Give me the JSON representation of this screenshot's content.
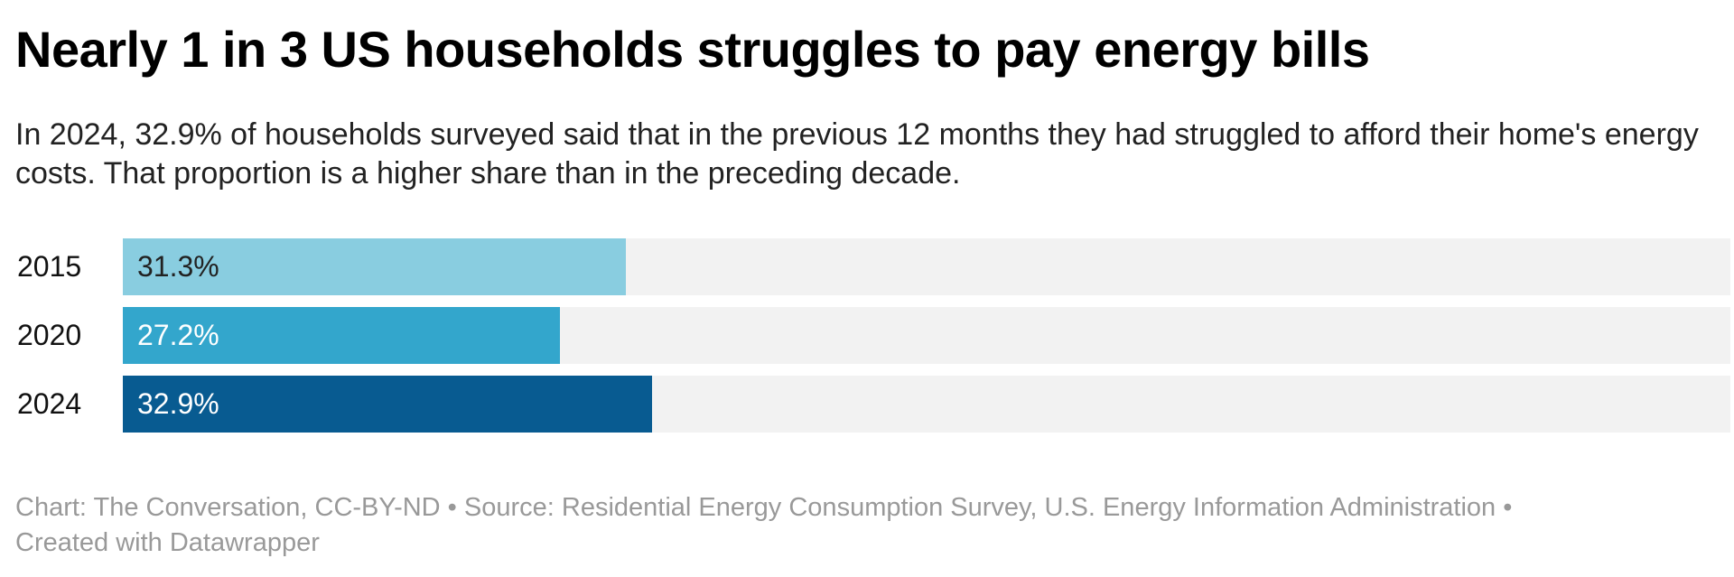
{
  "title": "Nearly 1 in 3 US households struggles to pay energy bills",
  "subtitle": "In 2024, 32.9% of households surveyed said that in the previous 12 months they had struggled to afford their home's energy costs. That proportion is a higher share than in the preceding decade.",
  "footer": "Chart: The Conversation, CC-BY-ND • Source: Residential Energy Consumption Survey, U.S. Energy Information Administration • Created with Datawrapper",
  "chart_data": {
    "type": "bar",
    "orientation": "horizontal",
    "categories": [
      "2015",
      "2020",
      "2024"
    ],
    "values": [
      31.3,
      27.2,
      32.9
    ],
    "labels": [
      "31.3%",
      "27.2%",
      "32.9%"
    ],
    "colors": [
      "#89cde0",
      "#33a6cc",
      "#085b91"
    ],
    "label_colors": [
      "#222222",
      "#ffffff",
      "#ffffff"
    ],
    "track_color": "#f2f2f2",
    "xlim": [
      0,
      100
    ],
    "grid": false
  }
}
